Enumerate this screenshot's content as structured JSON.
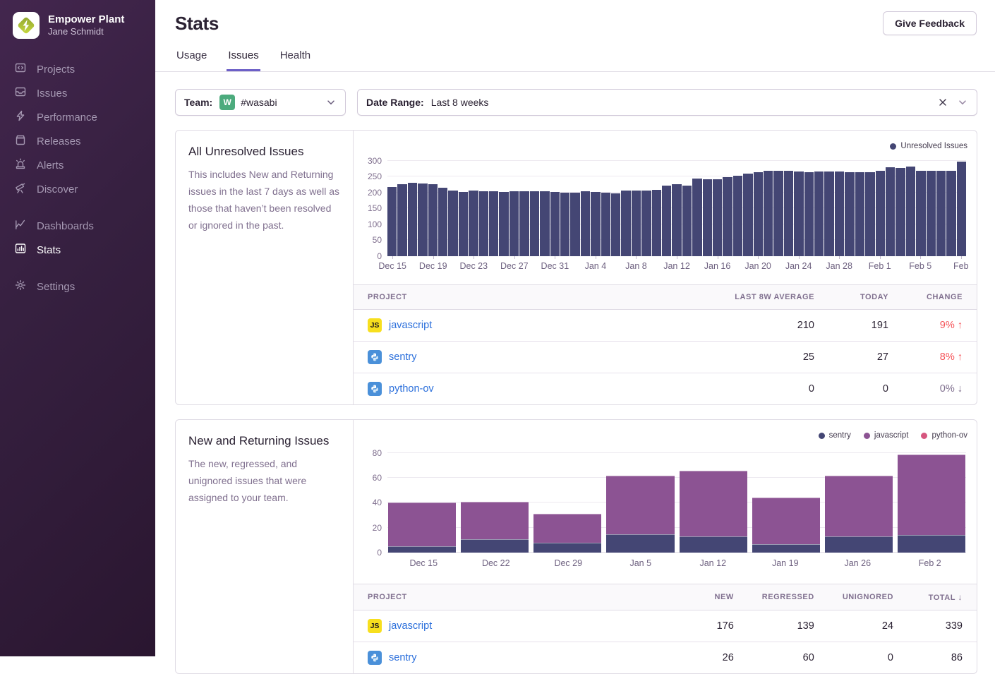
{
  "colors": {
    "accent_purple": "#6C5FC7",
    "link_blue": "#2b6fdb",
    "change_up_red": "#f55459",
    "neutral_gray": "#80708f",
    "chart_navy": "#444674",
    "chart_purple": "#8c5393",
    "chart_pink": "#d6567f",
    "team_avatar_green": "#4cab7d",
    "js_badge_yellow": "#f7df1e",
    "sidebar_purple": "#362040"
  },
  "sidebar": {
    "org_name": "Empower Plant",
    "user_name": "Jane Schmidt",
    "sections": [
      {
        "items": [
          {
            "label": "Projects",
            "icon": "projects-icon"
          },
          {
            "label": "Issues",
            "icon": "issues-icon"
          },
          {
            "label": "Performance",
            "icon": "performance-icon"
          },
          {
            "label": "Releases",
            "icon": "releases-icon"
          },
          {
            "label": "Alerts",
            "icon": "alerts-icon"
          },
          {
            "label": "Discover",
            "icon": "discover-icon"
          }
        ]
      },
      {
        "items": [
          {
            "label": "Dashboards",
            "icon": "dashboards-icon"
          },
          {
            "label": "Stats",
            "icon": "stats-icon",
            "active": true
          }
        ]
      },
      {
        "items": [
          {
            "label": "Settings",
            "icon": "settings-icon"
          }
        ]
      }
    ]
  },
  "header": {
    "title": "Stats",
    "feedback_button": "Give Feedback",
    "tabs": [
      {
        "label": "Usage"
      },
      {
        "label": "Issues",
        "active": true
      },
      {
        "label": "Health"
      }
    ]
  },
  "filters": {
    "team_label": "Team:",
    "team_avatar_letter": "W",
    "team_value": "#wasabi",
    "date_label": "Date Range:",
    "date_value": "Last 8 weeks"
  },
  "panels": [
    {
      "title": "All Unresolved Issues",
      "description": "This includes New and Returning issues in the last 7 days as well as those that haven’t been resolved or ignored in the past."
    },
    {
      "title": "New and Returning Issues",
      "description": "The new, regressed, and unignored issues that were assigned to your team."
    }
  ],
  "tables": {
    "unresolved": {
      "columns": [
        "PROJECT",
        "LAST 8W AVERAGE",
        "TODAY",
        "CHANGE"
      ],
      "rows": [
        {
          "project": "javascript",
          "platform": "javascript",
          "badge": "JS",
          "avg": "210",
          "today": "191",
          "change": "9%",
          "arrow": "↑",
          "trend": "up"
        },
        {
          "project": "sentry",
          "platform": "python",
          "avg": "25",
          "today": "27",
          "change": "8%",
          "arrow": "↑",
          "trend": "up"
        },
        {
          "project": "python-ov",
          "platform": "python",
          "avg": "0",
          "today": "0",
          "change": "0%",
          "arrow": "↓",
          "trend": "neutral"
        }
      ]
    },
    "new_returning": {
      "columns": [
        "PROJECT",
        "NEW",
        "REGRESSED",
        "UNIGNORED",
        "TOTAL"
      ],
      "sort_arrow": "↓",
      "rows": [
        {
          "project": "javascript",
          "platform": "javascript",
          "badge": "JS",
          "new": "176",
          "regressed": "139",
          "unignored": "24",
          "total": "339"
        },
        {
          "project": "sentry",
          "platform": "python",
          "new": "26",
          "regressed": "60",
          "unignored": "0",
          "total": "86"
        }
      ]
    }
  },
  "chart_data": [
    {
      "type": "bar",
      "title": "All Unresolved Issues",
      "legend": [
        {
          "name": "Unresolved Issues",
          "color": "#444674"
        }
      ],
      "legend_position": "top-right",
      "grid": "horizontal",
      "ylim": [
        0,
        310
      ],
      "yticks": [
        0,
        50,
        100,
        150,
        200,
        250,
        300
      ],
      "x": [
        "Dec 15",
        "Dec 16",
        "Dec 17",
        "Dec 18",
        "Dec 19",
        "Dec 20",
        "Dec 21",
        "Dec 22",
        "Dec 23",
        "Dec 24",
        "Dec 25",
        "Dec 26",
        "Dec 27",
        "Dec 28",
        "Dec 29",
        "Dec 30",
        "Dec 31",
        "Jan 1",
        "Jan 2",
        "Jan 3",
        "Jan 4",
        "Jan 5",
        "Jan 6",
        "Jan 7",
        "Jan 8",
        "Jan 9",
        "Jan 10",
        "Jan 11",
        "Jan 12",
        "Jan 13",
        "Jan 14",
        "Jan 15",
        "Jan 16",
        "Jan 17",
        "Jan 18",
        "Jan 19",
        "Jan 20",
        "Jan 21",
        "Jan 22",
        "Jan 23",
        "Jan 24",
        "Jan 25",
        "Jan 26",
        "Jan 27",
        "Jan 28",
        "Jan 29",
        "Jan 30",
        "Jan 31",
        "Feb 1",
        "Feb 2",
        "Feb 3",
        "Feb 4",
        "Feb 5",
        "Feb 6",
        "Feb 7",
        "Feb 8",
        "Feb 9"
      ],
      "values": [
        217,
        225,
        230,
        229,
        226,
        214,
        206,
        202,
        205,
        203,
        203,
        202,
        203,
        203,
        203,
        203,
        201,
        199,
        200,
        204,
        202,
        200,
        198,
        205,
        206,
        207,
        209,
        221,
        225,
        222,
        243,
        241,
        242,
        247,
        252,
        258,
        263,
        267,
        269,
        267,
        266,
        264,
        265,
        265,
        265,
        263,
        263,
        264,
        267,
        279,
        277,
        281,
        268,
        269,
        267,
        269,
        297
      ],
      "xtick_indices": [
        0,
        4,
        8,
        12,
        16,
        20,
        24,
        28,
        32,
        36,
        40,
        44,
        48,
        52,
        56
      ],
      "xtick_labels": [
        "Dec 15",
        "Dec 19",
        "Dec 23",
        "Dec 27",
        "Dec 31",
        "Jan 4",
        "Jan 8",
        "Jan 12",
        "Jan 16",
        "Jan 20",
        "Jan 24",
        "Jan 28",
        "Feb 1",
        "Feb 5",
        "Feb"
      ]
    },
    {
      "type": "stacked-bar",
      "title": "New and Returning Issues",
      "legend_position": "top-right",
      "grid": "horizontal",
      "ylim": [
        0,
        85
      ],
      "yticks": [
        0,
        20,
        40,
        60,
        80
      ],
      "categories": [
        "Dec 15",
        "Dec 22",
        "Dec 29",
        "Jan 5",
        "Jan 12",
        "Jan 19",
        "Jan 26",
        "Feb 2"
      ],
      "series": [
        {
          "name": "sentry",
          "color": "#444674",
          "values": [
            5,
            11,
            8,
            15,
            13,
            7,
            13,
            14
          ]
        },
        {
          "name": "javascript",
          "color": "#8c5393",
          "values": [
            35,
            30,
            23,
            47,
            53,
            37,
            49,
            65
          ]
        },
        {
          "name": "python-ov",
          "color": "#d6567f",
          "values": [
            0,
            0,
            0,
            0,
            0,
            0,
            0,
            0
          ]
        }
      ]
    }
  ]
}
